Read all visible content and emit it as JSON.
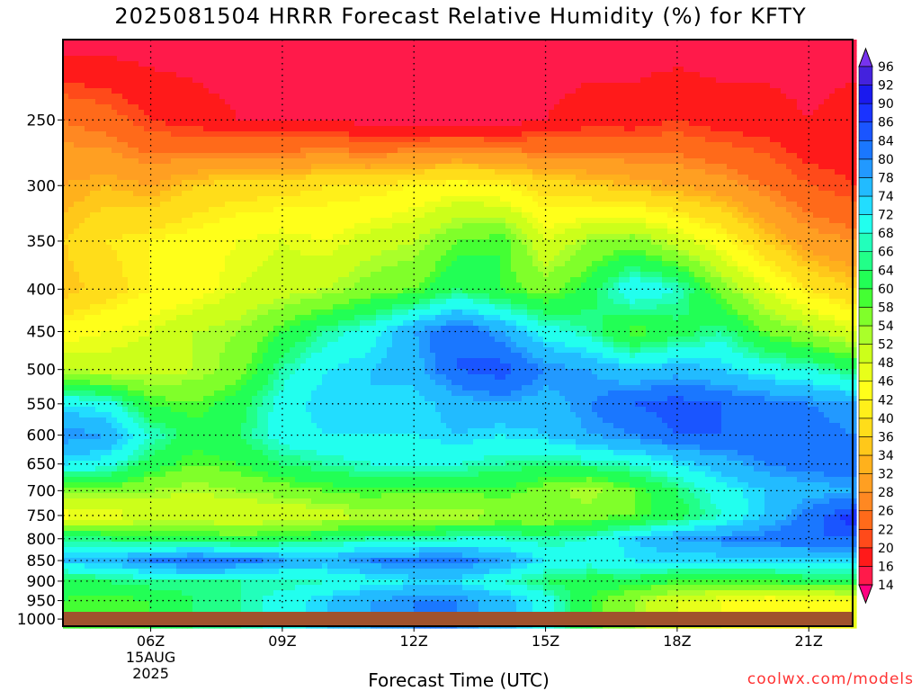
{
  "chart_data": {
    "type": "heatmap",
    "title": "2025081504 HRRR Forecast Relative Humidity (%) for KFTY",
    "xlabel": "Forecast Time (UTC)",
    "ylabel": "",
    "x_ticks": [
      {
        "hour": 6,
        "label": "06Z",
        "sub": [
          "15AUG",
          "2025"
        ]
      },
      {
        "hour": 9,
        "label": "09Z"
      },
      {
        "hour": 12,
        "label": "12Z"
      },
      {
        "hour": 15,
        "label": "15Z"
      },
      {
        "hour": 18,
        "label": "18Z"
      },
      {
        "hour": 21,
        "label": "21Z"
      }
    ],
    "xlim": [
      4,
      22
    ],
    "y_ticks": [
      250,
      300,
      350,
      400,
      450,
      500,
      550,
      600,
      650,
      700,
      750,
      800,
      850,
      900,
      950,
      1000
    ],
    "ylim": [
      200,
      1020
    ],
    "y_scale": "log",
    "y_reversed": true,
    "ground_level": 980,
    "grid": true,
    "colorbar": {
      "levels": [
        14,
        16,
        20,
        22,
        26,
        28,
        32,
        34,
        36,
        40,
        42,
        46,
        48,
        52,
        54,
        58,
        60,
        64,
        66,
        68,
        72,
        74,
        78,
        80,
        84,
        86,
        90,
        92,
        96
      ],
      "colors": [
        "#ff0080",
        "#ff1a4a",
        "#ff1a1a",
        "#ff4a1a",
        "#ff6a1a",
        "#ff8822",
        "#ff9f22",
        "#ffb11c",
        "#ffc81a",
        "#ffdd1a",
        "#fff01a",
        "#ffff1a",
        "#e8ff1a",
        "#ccff1a",
        "#aaff2a",
        "#80ff2a",
        "#44ff33",
        "#22ff55",
        "#22ff88",
        "#22ffbb",
        "#22ffee",
        "#22ddff",
        "#22bbff",
        "#2299ff",
        "#1a77ff",
        "#1a55ff",
        "#1a33ff",
        "#1a1aee",
        "#4422dd",
        "#7733ee"
      ],
      "placement": "right"
    },
    "hours": [
      4,
      5,
      6,
      7,
      8,
      9,
      10,
      11,
      12,
      13,
      14,
      15,
      16,
      17,
      18,
      19,
      20,
      21,
      22
    ],
    "pressures": [
      200,
      250,
      300,
      350,
      400,
      450,
      500,
      550,
      600,
      650,
      700,
      750,
      800,
      850,
      900,
      950
    ],
    "rh": [
      [
        14,
        14,
        14,
        14,
        14,
        14,
        14,
        14,
        14,
        14,
        14,
        14,
        14,
        14,
        14,
        14,
        14,
        14,
        14
      ],
      [
        26,
        24,
        20,
        18,
        16,
        16,
        16,
        14,
        14,
        14,
        14,
        16,
        18,
        18,
        20,
        18,
        18,
        16,
        18
      ],
      [
        32,
        34,
        32,
        36,
        38,
        38,
        40,
        40,
        42,
        44,
        42,
        38,
        36,
        34,
        32,
        30,
        26,
        22,
        20
      ],
      [
        36,
        40,
        42,
        44,
        46,
        48,
        46,
        50,
        52,
        58,
        60,
        48,
        54,
        56,
        50,
        44,
        36,
        30,
        28
      ],
      [
        34,
        38,
        42,
        44,
        48,
        50,
        52,
        56,
        58,
        64,
        60,
        56,
        62,
        72,
        68,
        56,
        48,
        40,
        36
      ],
      [
        44,
        46,
        48,
        52,
        54,
        60,
        66,
        70,
        78,
        84,
        78,
        70,
        66,
        58,
        62,
        66,
        58,
        54,
        48
      ],
      [
        52,
        50,
        50,
        52,
        56,
        66,
        72,
        74,
        76,
        84,
        86,
        80,
        78,
        74,
        76,
        74,
        70,
        68,
        64
      ],
      [
        72,
        70,
        60,
        58,
        62,
        70,
        74,
        74,
        72,
        76,
        78,
        76,
        80,
        84,
        86,
        84,
        82,
        80,
        78
      ],
      [
        80,
        78,
        68,
        62,
        64,
        70,
        72,
        72,
        72,
        74,
        72,
        74,
        78,
        80,
        84,
        84,
        84,
        82,
        80
      ],
      [
        72,
        70,
        62,
        58,
        60,
        64,
        66,
        68,
        68,
        68,
        66,
        64,
        66,
        68,
        72,
        76,
        80,
        82,
        82
      ],
      [
        56,
        56,
        54,
        52,
        54,
        56,
        58,
        60,
        58,
        58,
        60,
        56,
        52,
        58,
        64,
        70,
        74,
        76,
        78
      ],
      [
        44,
        46,
        48,
        48,
        48,
        48,
        50,
        52,
        52,
        52,
        54,
        54,
        56,
        58,
        62,
        68,
        74,
        82,
        88
      ],
      [
        66,
        64,
        62,
        62,
        60,
        62,
        64,
        66,
        66,
        68,
        68,
        66,
        68,
        74,
        78,
        80,
        82,
        84,
        84
      ],
      [
        74,
        76,
        80,
        84,
        82,
        78,
        76,
        80,
        82,
        82,
        78,
        72,
        70,
        72,
        72,
        72,
        72,
        72,
        72
      ],
      [
        62,
        64,
        66,
        66,
        66,
        66,
        68,
        70,
        72,
        72,
        68,
        64,
        62,
        62,
        60,
        60,
        60,
        62,
        62
      ],
      [
        60,
        58,
        60,
        64,
        66,
        70,
        74,
        78,
        80,
        80,
        76,
        70,
        60,
        54,
        48,
        46,
        44,
        44,
        46
      ]
    ]
  }
}
